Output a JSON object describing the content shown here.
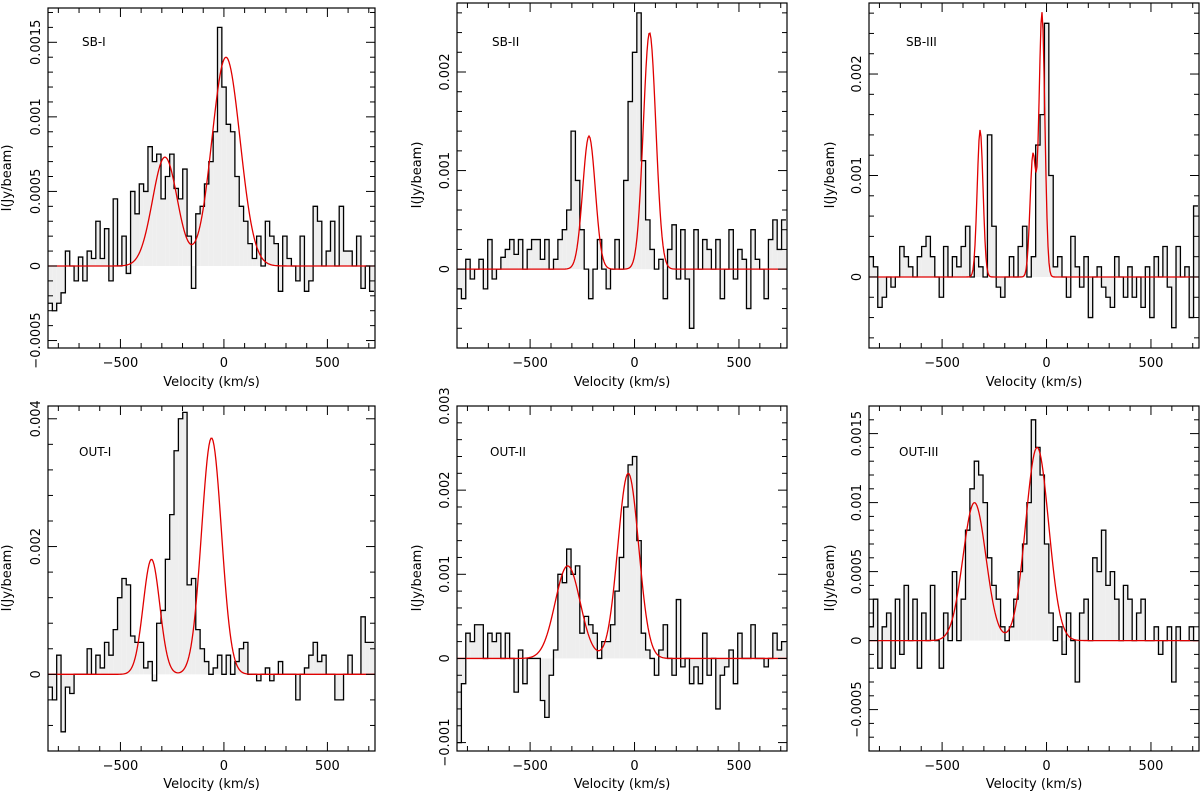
{
  "figure": {
    "colors": {
      "frame": "#000000",
      "histogram": "#000000",
      "fill": "#eeeeee",
      "fit": "#e00000",
      "background": "#ffffff"
    }
  },
  "chart_data": [
    {
      "type": "histogram",
      "label": "SB-I",
      "xlabel": "Velocity (km/s)",
      "ylabel": "I(Jy/beam)",
      "xlim": [
        -850,
        730
      ],
      "ylim": [
        -0.00055,
        0.00173
      ],
      "xticks": [
        -500,
        0,
        500
      ],
      "xtick_labels": [
        "−500",
        "0",
        "500"
      ],
      "yticks": [
        -0.0005,
        0,
        0.0005,
        0.001,
        0.0015
      ],
      "ytick_labels": [
        "−0.0005",
        "0",
        "0.0005",
        "0.001",
        "0.0015"
      ],
      "x_start": -850,
      "bin_width": 21,
      "values": [
        -0.00025,
        -0.0003,
        -0.00025,
        -0.00018,
        0.0001,
        0.0,
        -0.0001,
        6e-05,
        -0.0001,
        0.0001,
        5e-05,
        0.0003,
        5e-05,
        0.00025,
        -0.0001,
        0.00045,
        0.0,
        0.0002,
        -5e-05,
        0.0005,
        0.00035,
        0.00055,
        0.0005,
        0.0008,
        0.0007,
        0.00075,
        0.00045,
        0.0006,
        0.00075,
        0.00052,
        0.00045,
        0.00065,
        0.0002,
        -0.00015,
        0.00035,
        0.0004,
        0.00055,
        0.0007,
        0.0009,
        0.0016,
        0.0012,
        0.00095,
        0.0009,
        0.0006,
        0.0004,
        0.0003,
        0.00015,
        5e-05,
        0.0002,
        0.0,
        0.0003,
        0.0002,
        0.00015,
        -0.00017,
        0.0002,
        5e-05,
        0.0,
        -0.0001,
        0.0002,
        -0.00017,
        -0.0001,
        0.0004,
        0.0003,
        0.0,
        0.0001,
        0.0003,
        0.0,
        0.0004,
        0.0001,
        0.0001,
        0.0,
        0.0002,
        -0.00015,
        0.0,
        -0.00017
      ],
      "fit": [
        {
          "amp": 0.00073,
          "center": -285,
          "sigma": 60
        },
        {
          "amp": 0.0014,
          "center": 10,
          "sigma": 68
        }
      ]
    },
    {
      "type": "histogram",
      "label": "SB-II",
      "xlabel": "Velocity (km/s)",
      "ylabel": "I(Jy/beam)",
      "xlim": [
        -850,
        730
      ],
      "ylim": [
        -0.0008,
        0.0027
      ],
      "xticks": [
        -500,
        0,
        500
      ],
      "xtick_labels": [
        "−500",
        "0",
        "500"
      ],
      "yticks": [
        0,
        0.001,
        0.002
      ],
      "ytick_labels": [
        "0",
        "0.001",
        "0.002"
      ],
      "x_start": -850,
      "bin_width": 21,
      "values": [
        -0.0002,
        -0.0003,
        0.0001,
        -0.0001,
        0.0,
        0.0001,
        -0.0002,
        0.0003,
        -0.0001,
        0.0,
        0.00012,
        0.0002,
        0.0003,
        0.00015,
        0.0003,
        0.0,
        0.0002,
        0.0003,
        0.0003,
        0.0001,
        0.0003,
        0.0,
        0.0001,
        0.0003,
        0.0004,
        0.0006,
        0.0014,
        0.0009,
        0.0004,
        0.0,
        -0.0003,
        0.0,
        0.0003,
        0.0,
        -0.0002,
        0.0,
        0.0003,
        0.0,
        0.0009,
        0.0017,
        0.0022,
        0.0026,
        0.0011,
        0.0005,
        0.0002,
        0.0,
        0.0001,
        -0.0003,
        0.0002,
        0.00045,
        -0.0001,
        0.0004,
        -0.0001,
        -0.0006,
        0.0004,
        0.0,
        0.0003,
        0.0002,
        0.0,
        0.0003,
        -0.0003,
        0.0,
        0.0004,
        -0.0001,
        0.0002,
        0.0001,
        -0.0004,
        0.0004,
        0.0001,
        0.0,
        -0.0003,
        0.0003,
        0.0005,
        0.0002,
        0.0005
      ],
      "fit": [
        {
          "amp": 0.00135,
          "center": -218,
          "sigma": 30
        },
        {
          "amp": 0.0024,
          "center": 72,
          "sigma": 30
        }
      ]
    },
    {
      "type": "histogram",
      "label": "SB-III",
      "xlabel": "Velocity (km/s)",
      "ylabel": "I(Jy/beam)",
      "xlim": [
        -850,
        730
      ],
      "ylim": [
        -0.0007,
        0.0027
      ],
      "xticks": [
        -500,
        0,
        500
      ],
      "xtick_labels": [
        "−500",
        "0",
        "500"
      ],
      "yticks": [
        0,
        0.001,
        0.002
      ],
      "ytick_labels": [
        "0",
        "0.001",
        "0.002"
      ],
      "x_start": -850,
      "bin_width": 21,
      "values": [
        0.0002,
        0.0001,
        -0.0003,
        -0.0002,
        0.0,
        -0.0001,
        0.0,
        0.0003,
        0.0002,
        0.0001,
        0.0,
        0.0002,
        0.0003,
        0.0004,
        0.0002,
        0.0,
        -0.0002,
        0.0003,
        0.0,
        0.0002,
        0.0001,
        0.0003,
        0.0005,
        0.0,
        0.0002,
        0.0001,
        0.0,
        0.0014,
        0.0005,
        -0.0001,
        -0.0002,
        0.0,
        0.0002,
        0.0,
        0.0003,
        0.0005,
        0.0,
        0.0002,
        0.0013,
        0.0016,
        0.0025,
        0.001,
        0.0001,
        0.0002,
        0.0,
        -0.0002,
        0.0004,
        0.0001,
        -0.0001,
        0.0002,
        -0.0004,
        0.0,
        0.0001,
        -0.0001,
        -0.0002,
        -0.0003,
        0.0002,
        0.0,
        -0.0002,
        0.0001,
        -0.0002,
        0.0,
        -0.0003,
        0.0001,
        -0.0004,
        0.0002,
        0.0,
        0.0003,
        -0.0001,
        -0.0005,
        0.0003,
        0.0,
        0.0001,
        -0.0004,
        0.0007
      ],
      "fit": [
        {
          "amp": 0.00145,
          "center": -318,
          "sigma": 14
        },
        {
          "amp": 0.0012,
          "center": -65,
          "sigma": 14
        },
        {
          "amp": 0.0026,
          "center": -22,
          "sigma": 14
        }
      ]
    },
    {
      "type": "histogram",
      "label": "OUT-I",
      "xlabel": "Velocity (km/s)",
      "ylabel": "I(Jy/beam)",
      "xlim": [
        -850,
        730
      ],
      "ylim": [
        -0.0012,
        0.0042
      ],
      "xticks": [
        -500,
        0,
        500
      ],
      "xtick_labels": [
        "−500",
        "0",
        "500"
      ],
      "yticks": [
        0,
        0.002,
        0.004
      ],
      "ytick_labels": [
        "0",
        "0.002",
        "0.004"
      ],
      "x_start": -850,
      "bin_width": 21,
      "values": [
        -0.0002,
        -0.0004,
        0.0003,
        -0.0009,
        -0.0002,
        -0.0003,
        0.0,
        0.0,
        0.0,
        0.0004,
        0.0,
        0.0003,
        0.0001,
        0.0005,
        0.0003,
        0.0007,
        0.0012,
        0.0015,
        0.0014,
        0.0006,
        0.0005,
        0.0005,
        0.0001,
        0.0002,
        -0.0001,
        0.0008,
        0.001,
        0.0018,
        0.0025,
        0.0035,
        0.004,
        0.0041,
        0.0014,
        0.0015,
        0.0007,
        0.0004,
        0.0002,
        0.0,
        0.0001,
        0.0003,
        0.0,
        0.0003,
        0.0,
        0.0002,
        0.0004,
        0.0005,
        0.0,
        0.0,
        -0.0001,
        0.0,
        0.0001,
        -0.0001,
        0.0,
        0.0002,
        0.0,
        0.0,
        0.0,
        -0.0004,
        0.0,
        0.0001,
        0.0003,
        0.0005,
        0.0002,
        0.0003,
        0.0,
        0.0,
        -0.0004,
        -0.0004,
        0.0,
        0.0003,
        0.0,
        0.0,
        0.0009,
        0.0005,
        0.0005
      ],
      "fit": [
        {
          "amp": 0.0018,
          "center": -350,
          "sigma": 40
        },
        {
          "amp": 0.0037,
          "center": -60,
          "sigma": 48
        }
      ]
    },
    {
      "type": "histogram",
      "label": "OUT-II",
      "xlabel": "Velocity (km/s)",
      "ylabel": "I(Jy/beam)",
      "xlim": [
        -850,
        730
      ],
      "ylim": [
        -0.0011,
        0.003
      ],
      "xticks": [
        -500,
        0,
        500
      ],
      "xtick_labels": [
        "−500",
        "0",
        "500"
      ],
      "yticks": [
        -0.001,
        0,
        0.001,
        0.002,
        0.003
      ],
      "ytick_labels": [
        "−0.001",
        "0",
        "0.001",
        "0.002",
        "0.003"
      ],
      "x_start": -850,
      "bin_width": 21,
      "values": [
        -0.001,
        -0.0003,
        0.0003,
        0.0002,
        0.0004,
        0.0004,
        0.0,
        0.0003,
        0.0002,
        0.0003,
        0.0,
        0.0003,
        0.0,
        -0.0004,
        0.0001,
        -0.0003,
        0.0,
        0.0,
        0.0,
        -0.0005,
        -0.0007,
        -0.0002,
        0.0001,
        0.001,
        0.0009,
        0.0013,
        0.001,
        0.0011,
        0.0003,
        0.0005,
        0.0004,
        0.0003,
        0.0,
        0.0002,
        0.0002,
        0.0004,
        0.0008,
        0.0012,
        0.0018,
        0.0023,
        0.0024,
        0.0014,
        0.0003,
        0.0001,
        0.0,
        -0.0002,
        0.0001,
        0.0004,
        0.0,
        -0.0002,
        0.0007,
        -0.0001,
        0.0,
        -0.0003,
        -0.0001,
        -0.0003,
        0.0003,
        -0.0002,
        0.0,
        -0.0006,
        -0.0002,
        -0.0001,
        0.0001,
        -0.0003,
        0.0003,
        0.0,
        0.0,
        0.0004,
        0.0,
        0.0,
        -0.0001,
        0.0,
        0.0003,
        0.0001,
        0.0002
      ],
      "fit": [
        {
          "amp": 0.0011,
          "center": -320,
          "sigma": 60
        },
        {
          "amp": 0.0022,
          "center": -30,
          "sigma": 50
        }
      ]
    },
    {
      "type": "histogram",
      "label": "OUT-III",
      "xlabel": "Velocity (km/s)",
      "ylabel": "I(Jy/beam)",
      "xlim": [
        -850,
        730
      ],
      "ylim": [
        -0.0008,
        0.0017
      ],
      "xticks": [
        -500,
        0,
        500
      ],
      "xtick_labels": [
        "−500",
        "0",
        "500"
      ],
      "yticks": [
        -0.0005,
        0,
        0.0005,
        0.001,
        0.0015
      ],
      "ytick_labels": [
        "−0.0005",
        "0",
        "0.0005",
        "0.001",
        "0.0015"
      ],
      "x_start": -850,
      "bin_width": 21,
      "values": [
        0.0001,
        0.0003,
        -0.0002,
        0.0001,
        0.0002,
        -0.0002,
        0.0003,
        -0.0001,
        0.0004,
        0.0,
        0.0003,
        -0.0002,
        0.0002,
        0.0,
        0.0004,
        0.0,
        -0.0002,
        0.0002,
        0.0,
        0.0005,
        0.0,
        0.0003,
        0.0008,
        0.0011,
        0.0013,
        0.0012,
        0.001,
        0.0006,
        0.0004,
        0.0003,
        0.0001,
        0.0,
        0.0001,
        0.0003,
        0.0005,
        0.0007,
        0.001,
        0.0016,
        0.0014,
        0.0012,
        0.0007,
        0.0002,
        0.0,
        0.0001,
        -0.0001,
        0.0002,
        0.0,
        -0.0003,
        0.0002,
        0.0003,
        0.0,
        0.0006,
        0.0005,
        0.0008,
        0.0004,
        0.0005,
        0.0003,
        0.0,
        0.0004,
        0.0003,
        0.0,
        0.0002,
        0.0003,
        0.0,
        0.0,
        0.0001,
        -0.0001,
        0.0,
        0.0001,
        -0.0003,
        0.0001,
        0.0,
        0.0,
        0.0001,
        0.0
      ],
      "fit": [
        {
          "amp": 0.001,
          "center": -345,
          "sigma": 55
        },
        {
          "amp": 0.0014,
          "center": -45,
          "sigma": 55
        }
      ]
    }
  ]
}
